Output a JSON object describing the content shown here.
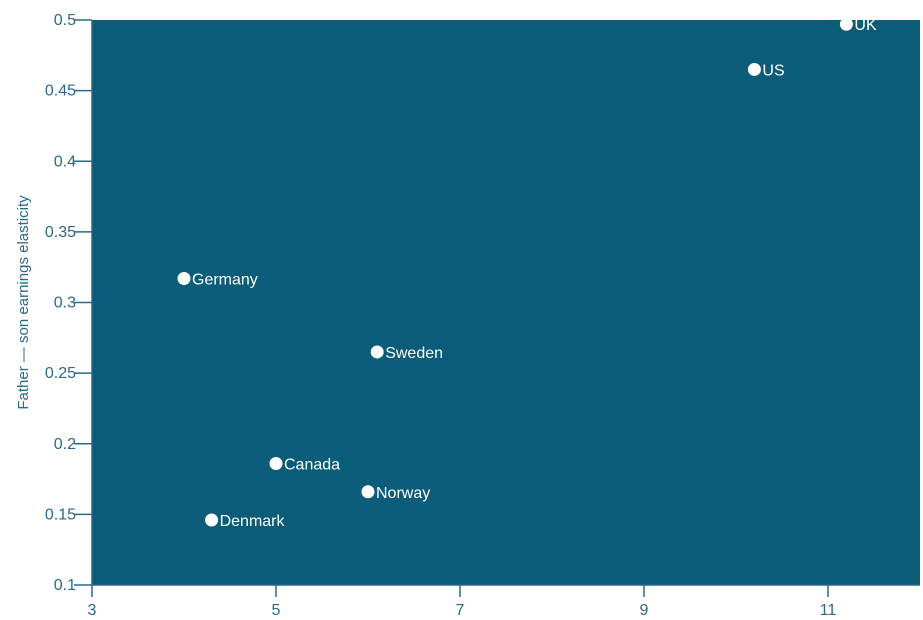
{
  "colors": {
    "plot_background": "#0a5c78",
    "axis": "#2a6a8a",
    "point": "#ffffff",
    "label": "#ffffff",
    "tick_text": "#2a6a8a"
  },
  "chart_data": {
    "type": "scatter",
    "title": "",
    "xlabel": "",
    "ylabel": "Father — son earnings elasticity",
    "xlim": [
      3,
      12
    ],
    "ylim": [
      0.1,
      0.5
    ],
    "x_ticks": [
      3,
      5,
      7,
      9,
      11
    ],
    "y_ticks": [
      0.1,
      0.15,
      0.2,
      0.25,
      0.3,
      0.35,
      0.4,
      0.45,
      0.5
    ],
    "grid": false,
    "legend": "none",
    "points": [
      {
        "label": "UK",
        "x": 11.2,
        "y": 0.497
      },
      {
        "label": "US",
        "x": 10.2,
        "y": 0.465
      },
      {
        "label": "Germany",
        "x": 4.0,
        "y": 0.317
      },
      {
        "label": "Sweden",
        "x": 6.1,
        "y": 0.265
      },
      {
        "label": "Canada",
        "x": 5.0,
        "y": 0.186
      },
      {
        "label": "Norway",
        "x": 6.0,
        "y": 0.166
      },
      {
        "label": "Denmark",
        "x": 4.3,
        "y": 0.146
      }
    ]
  }
}
